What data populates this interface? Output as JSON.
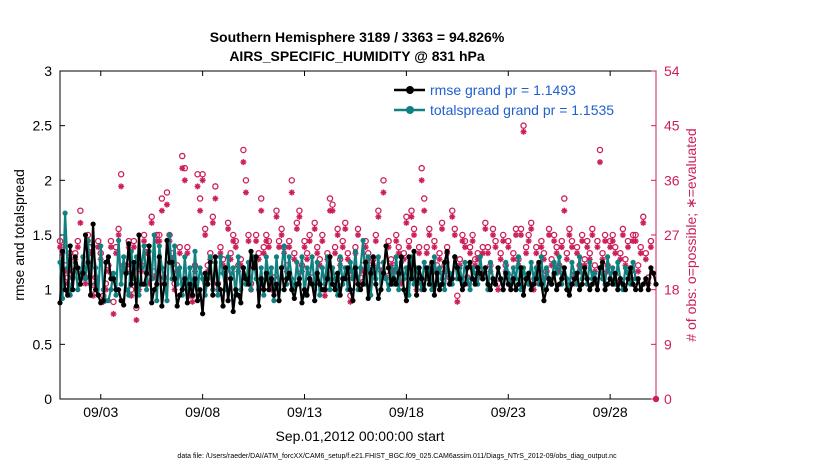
{
  "chart_data": {
    "type": "line",
    "title": "Southern Hemisphere 3189 / 3363 = 94.826%",
    "subtitle": "AIRS_SPECIFIC_HUMIDITY @ 831 hPa",
    "xlabel": "Sep.01,2012 00:00:00 start",
    "ylabel": "rmse and totalspread",
    "ylabel_right": "# of obs: o=possible; ∗=evaluated",
    "xlim": [
      1.0,
      30.25
    ],
    "ylim": [
      0,
      3
    ],
    "ylim_right": [
      0,
      54
    ],
    "x_ticks": [
      {
        "x": 3,
        "label": "09/03"
      },
      {
        "x": 8,
        "label": "09/08"
      },
      {
        "x": 13,
        "label": "09/13"
      },
      {
        "x": 18,
        "label": "09/18"
      },
      {
        "x": 23,
        "label": "09/23"
      },
      {
        "x": 28,
        "label": "09/28"
      }
    ],
    "y_ticks": [
      {
        "v": 0,
        "label": "0"
      },
      {
        "v": 0.5,
        "label": "0.5"
      },
      {
        "v": 1,
        "label": "1"
      },
      {
        "v": 1.5,
        "label": "1.5"
      },
      {
        "v": 2,
        "label": "2"
      },
      {
        "v": 2.5,
        "label": "2.5"
      },
      {
        "v": 3,
        "label": "3"
      }
    ],
    "y_right_ticks": [
      {
        "v": 0,
        "label": "0"
      },
      {
        "v": 9,
        "label": "9"
      },
      {
        "v": 18,
        "label": "18"
      },
      {
        "v": 27,
        "label": "27"
      },
      {
        "v": 36,
        "label": "36"
      },
      {
        "v": 45,
        "label": "45"
      },
      {
        "v": 54,
        "label": "54"
      }
    ],
    "legend_position": "top-right",
    "legend": [
      {
        "label": "rmse grand pr = 1.1493",
        "color": "#000000"
      },
      {
        "label": "totalspread grand pr = 1.1535",
        "color": "#108080"
      }
    ],
    "series": [
      {
        "name": "rmse grand pr = 1.1493",
        "color": "#000000",
        "y": [
          0.88,
          1.35,
          1.0,
          0.95,
          1.4,
          1.0,
          1.3,
          1.2,
          1.05,
          1.15,
          1.5,
          1.25,
          0.95,
          1.6,
          1.0,
          0.95,
          0.88,
          0.9,
          1.25,
          1.3,
          1.1,
          1.1,
          1.0,
          1.0,
          0.9,
          0.86,
          1.15,
          1.42,
          1.05,
          1.25,
          0.85,
          1.5,
          1.05,
          1.05,
          1.15,
          1.4,
          0.88,
          1.0,
          1.05,
          1.3,
          0.85,
          1.05,
          1.45,
          1.25,
          1.25,
          1.1,
          0.85,
          0.95,
          1.0,
          1.1,
          0.88,
          1.05,
          0.95,
          1.1,
          0.9,
          1.0,
          0.78,
          1.15,
          1.05,
          1.25,
          0.95,
          1.3,
          1.05,
          1.0,
          0.85,
          1.2,
          0.9,
          1.1,
          0.8,
          1.0,
          0.95,
          0.88,
          1.2,
          1.1,
          1.05,
          1.35,
          1.2,
          1.3,
          0.85,
          1.1,
          1.0,
          1.15,
          1.0,
          1.1,
          0.95,
          1.05,
          0.9,
          1.2,
          1.0,
          1.1,
          1.15,
          1.0,
          0.92,
          1.05,
          1.1,
          0.88,
          1.0,
          0.95,
          1.1,
          1.05,
          0.9,
          1.15,
          1.05,
          1.0,
          1.0,
          1.1,
          1.3,
          1.05,
          1.0,
          1.15,
          0.95,
          1.1,
          1.1,
          1.2,
          1.0,
          0.9,
          1.2,
          1.05,
          1.0,
          1.05,
          1.25,
          0.92,
          1.15,
          1.3,
          1.05,
          0.92,
          1.0,
          1.15,
          1.4,
          1.2,
          1.05,
          1.1,
          1.05,
          1.15,
          1.3,
          1.0,
          0.9,
          1.3,
          1.1,
          1.35,
          0.95,
          1.2,
          1.1,
          1.0,
          1.2,
          1.05,
          1.25,
          0.95,
          1.15,
          1.0,
          1.05,
          1.25,
          1.35,
          1.05,
          1.1,
          1.3,
          1.2,
          1.1,
          1.0,
          1.05,
          1.2,
          1.25,
          1.1,
          1.05,
          1.2,
          1.15,
          1.1,
          1.2,
          1.05,
          1.0,
          1.1,
          1.05,
          1.2,
          1.1,
          1.0,
          1.15,
          1.05,
          1.0,
          1.1,
          1.0,
          1.05,
          1.2,
          0.95,
          1.1,
          1.15,
          1.0,
          1.05,
          1.1,
          1.25,
          1.05,
          0.9,
          1.0,
          1.1,
          1.05,
          1.15,
          1.0,
          1.05,
          1.1,
          1.2,
          1.0,
          0.95,
          1.05,
          1.1,
          1.15,
          1.0,
          1.05,
          1.2,
          1.1,
          1.0,
          1.05,
          1.1,
          1.0,
          1.2,
          1.25,
          1.0,
          1.05,
          1.1,
          1.05,
          1.15,
          1.0,
          1.1,
          1.05,
          1.0,
          1.1,
          1.2,
          1.05,
          1.0,
          1.1,
          1.0,
          1.05,
          1.1,
          1.0,
          1.2,
          1.15,
          1.05,
          1.0,
          1.25,
          1.2
        ]
      },
      {
        "name": "totalspread grand pr = 1.1535",
        "color": "#108080",
        "y": [
          1.25,
          0.92,
          1.7,
          1.2,
          0.95,
          1.1,
          1.25,
          1.0,
          1.1,
          1.3,
          1.1,
          1.45,
          1.05,
          1.4,
          1.2,
          0.95,
          1.4,
          1.0,
          0.9,
          0.9,
          1.0,
          1.15,
          0.95,
          1.45,
          1.05,
          1.3,
          1.0,
          0.95,
          1.35,
          1.1,
          1.3,
          0.95,
          1.2,
          1.4,
          1.0,
          1.35,
          1.1,
          1.5,
          0.9,
          1.4,
          1.2,
          1.1,
          0.9,
          1.5,
          1.1,
          1.4,
          1.05,
          1.2,
          0.95,
          1.3,
          1.0,
          1.2,
          0.95,
          1.35,
          1.0,
          1.2,
          1.1,
          0.95,
          1.1,
          1.3,
          1.0,
          1.25,
          0.95,
          1.3,
          1.15,
          1.0,
          1.3,
          1.1,
          1.2,
          0.95,
          1.3,
          1.0,
          1.2,
          1.05,
          1.25,
          1.0,
          1.3,
          1.1,
          1.0,
          1.2,
          0.95,
          1.3,
          1.1,
          1.2,
          0.9,
          1.3,
          1.0,
          1.2,
          1.4,
          1.05,
          1.3,
          1.1,
          1.0,
          1.25,
          1.05,
          1.3,
          0.95,
          1.2,
          1.1,
          1.3,
          1.0,
          1.25,
          0.95,
          1.2,
          1.05,
          1.3,
          1.0,
          1.2,
          1.1,
          0.95,
          1.3,
          1.05,
          1.2,
          1.0,
          1.25,
          1.1,
          1.35,
          1.0,
          1.2,
          1.45,
          1.05,
          1.3,
          0.95,
          1.2,
          1.1,
          1.3,
          1.0,
          1.25,
          1.1,
          1.0,
          1.2,
          1.05,
          1.3,
          1.0,
          1.25,
          1.1,
          1.2,
          0.95,
          1.3,
          1.05,
          1.2,
          1.1,
          1.0,
          1.25,
          1.1,
          1.2,
          1.0,
          1.3,
          1.05,
          1.2,
          1.1,
          1.0,
          1.25,
          1.15,
          1.05,
          1.3,
          1.1,
          1.2,
          1.05,
          1.25,
          1.1,
          1.0,
          1.2,
          1.15,
          1.05,
          1.3,
          1.1,
          1.2,
          1.0,
          1.25,
          1.1,
          1.05,
          1.2,
          1.1,
          1.0,
          1.25,
          1.15,
          1.05,
          1.2,
          1.1,
          1.3,
          1.0,
          1.2,
          1.1,
          1.05,
          1.25,
          1.1,
          1.2,
          1.05,
          1.3,
          1.0,
          1.2,
          1.1,
          1.05,
          1.25,
          1.15,
          1.3,
          1.05,
          1.2,
          1.1,
          1.0,
          1.25,
          1.15,
          1.05,
          1.3,
          1.1,
          1.2,
          1.05,
          1.25,
          1.1,
          1.15,
          1.0,
          1.2,
          1.1,
          1.05,
          1.3,
          1.1,
          1.2,
          1.05,
          1.25,
          1.1,
          1.0,
          1.2,
          1.15,
          1.05,
          1.25,
          1.1
        ]
      },
      {
        "name": "possible",
        "color": "#cc1f5a",
        "axis": "right",
        "y": [
          26,
          25,
          22,
          20,
          24,
          21,
          24,
          26,
          31,
          21,
          20,
          27,
          25,
          18,
          20,
          26,
          24,
          17,
          19,
          22,
          26,
          16,
          25,
          28,
          37,
          22,
          22,
          26,
          18,
          26,
          15,
          19,
          22,
          27,
          25,
          20,
          30,
          21,
          27,
          27,
          33,
          20,
          34,
          27,
          24,
          19,
          22,
          25,
          40,
          38,
          25,
          18,
          17,
          22,
          37,
          33,
          37,
          28,
          22,
          24,
          30,
          35,
          19,
          25,
          23,
          21,
          29,
          24,
          27,
          26,
          22,
          23,
          41,
          36,
          27,
          19,
          23,
          27,
          24,
          33,
          25,
          27,
          26,
          19,
          20,
          31,
          26,
          28,
          25,
          22,
          26,
          36,
          24,
          29,
          31,
          22,
          26,
          24,
          27,
          20,
          29,
          25,
          23,
          27,
          18,
          24,
          33,
          32,
          25,
          28,
          23,
          26,
          29,
          24,
          17,
          21,
          25,
          28,
          20,
          22,
          26,
          24,
          22,
          23,
          27,
          31,
          22,
          36,
          21,
          26,
          23,
          22,
          27,
          25,
          20,
          24,
          30,
          26,
          31,
          28,
          19,
          25,
          38,
          33,
          25,
          28,
          22,
          26,
          22,
          24,
          29,
          22,
          25,
          20,
          31,
          28,
          17,
          23,
          27,
          26,
          20,
          25,
          27,
          23,
          24,
          21,
          25,
          29,
          25,
          22,
          28,
          26,
          19,
          24,
          27,
          22,
          26,
          20,
          24,
          28,
          23,
          28,
          45,
          25,
          27,
          29,
          19,
          25,
          22,
          26,
          24,
          21,
          28,
          23,
          27,
          25,
          22,
          26,
          33,
          24,
          28,
          26,
          20,
          25,
          22,
          27,
          23,
          26,
          24,
          28,
          22,
          26,
          41,
          24,
          27,
          22,
          26,
          27,
          25,
          20,
          24,
          28,
          23,
          26,
          21,
          27,
          27,
          22,
          25,
          30,
          24,
          20,
          26
        ]
      },
      {
        "name": "evaluated",
        "color": "#cc1f5a",
        "axis": "right",
        "y": [
          25,
          24,
          21,
          19,
          23,
          20,
          23,
          25,
          29,
          20,
          19,
          26,
          24,
          17,
          19,
          25,
          23,
          16,
          18,
          21,
          25,
          14,
          24,
          27,
          35,
          21,
          21,
          25,
          17,
          25,
          13,
          18,
          21,
          26,
          24,
          19,
          29,
          20,
          26,
          26,
          31,
          19,
          32,
          26,
          23,
          18,
          21,
          24,
          38,
          36,
          24,
          17,
          16,
          21,
          35,
          31,
          36,
          27,
          21,
          23,
          29,
          33,
          18,
          24,
          22,
          20,
          28,
          23,
          26,
          25,
          21,
          22,
          39,
          34,
          26,
          18,
          22,
          26,
          23,
          31,
          24,
          26,
          25,
          18,
          19,
          30,
          25,
          27,
          24,
          21,
          25,
          34,
          23,
          28,
          30,
          21,
          25,
          23,
          26,
          19,
          28,
          24,
          22,
          26,
          17,
          23,
          31,
          31,
          24,
          27,
          22,
          25,
          28,
          23,
          16,
          20,
          24,
          27,
          19,
          21,
          25,
          23,
          21,
          22,
          26,
          30,
          21,
          34,
          20,
          25,
          22,
          21,
          26,
          24,
          19,
          23,
          29,
          25,
          30,
          27,
          18,
          24,
          36,
          31,
          24,
          27,
          21,
          25,
          21,
          23,
          28,
          21,
          24,
          19,
          30,
          27,
          16,
          22,
          26,
          25,
          19,
          24,
          26,
          22,
          23,
          20,
          24,
          28,
          24,
          21,
          27,
          25,
          18,
          23,
          26,
          21,
          25,
          19,
          23,
          27,
          22,
          27,
          44,
          24,
          26,
          28,
          18,
          24,
          21,
          25,
          23,
          20,
          27,
          22,
          26,
          24,
          21,
          25,
          31,
          23,
          27,
          25,
          19,
          24,
          21,
          26,
          22,
          25,
          23,
          27,
          21,
          25,
          39,
          23,
          26,
          21,
          25,
          26,
          24,
          19,
          23,
          27,
          22,
          25,
          20,
          26,
          26,
          21,
          24,
          29,
          23,
          19,
          25
        ]
      }
    ],
    "x_start": 1.0,
    "x_step": 0.125,
    "grid": false,
    "footnote": "data file: /Users/raeder/DAI/ATM_forcXX/CAM6_setup/f.e21.FHIST_BGC.f09_025.CAM6assim.011/Diags_NTrS_2012-09/obs_diag_output.nc"
  }
}
